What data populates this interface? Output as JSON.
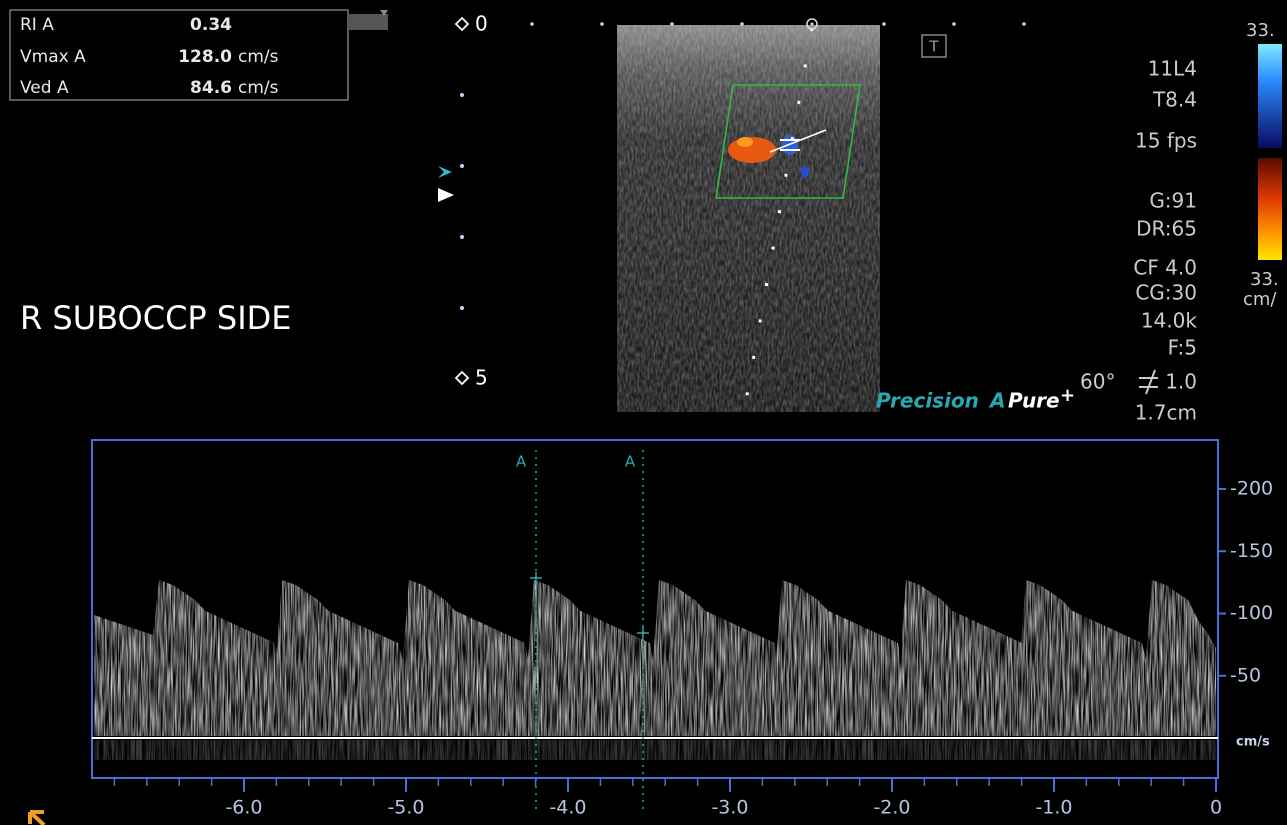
{
  "measurements": [
    {
      "label": "RI A",
      "value": "0.34"
    },
    {
      "label": "Vmax A",
      "value": "128.0",
      "unit": "cm/s"
    },
    {
      "label": "Ved A",
      "value": "84.6",
      "unit": "cm/s"
    }
  ],
  "depth_scale": [
    0,
    5
  ],
  "annotation": "R SUBOCCP SIDE",
  "transducer_icon": "T",
  "parameters": [
    "11L4",
    "T8.4",
    "15 fps",
    "G:91",
    "DR:65",
    "CF 4.0",
    "CG:30",
    "14.0k",
    "F:5",
    "1.0",
    "1.7cm"
  ],
  "angle": "60°",
  "color_scale": {
    "top": "33.",
    "bottom": "33.",
    "unit": "cm/"
  },
  "logos": {
    "precision": "Precision",
    "apure_a": "A",
    "apure": "Pure",
    "apure_plus": "+"
  },
  "spectral": {
    "velocity_ticks": [
      -200,
      -150,
      -100,
      -50
    ],
    "velocity_unit": "cm/s",
    "time_ticks": [
      {
        "value": -6,
        "label": "-6.0"
      },
      {
        "value": -5,
        "label": "-5.0"
      },
      {
        "value": -4,
        "label": "-4.0"
      },
      {
        "value": -3,
        "label": "-3.0"
      },
      {
        "value": -2,
        "label": "-2.0"
      },
      {
        "value": -1,
        "label": "-1.0"
      },
      0
    ],
    "cursors": [
      "A",
      "A"
    ]
  }
}
